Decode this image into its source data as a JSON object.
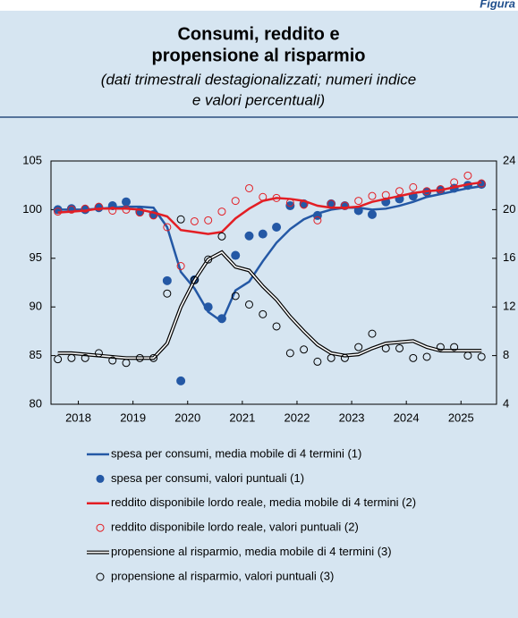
{
  "figure_label": "Figura",
  "chart_data": {
    "type": "line",
    "title": [
      "Consumi, reddito e",
      "propensione al risparmio"
    ],
    "subtitle": [
      "(dati trimestrali destagionalizzati; numeri indice",
      "e valori percentuali)"
    ],
    "x": [
      2018.125,
      2018.375,
      2018.625,
      2018.875,
      2019.125,
      2019.375,
      2019.625,
      2019.875,
      2020.125,
      2020.375,
      2020.625,
      2020.875,
      2021.125,
      2021.375,
      2021.625,
      2021.875,
      2022.125,
      2022.375,
      2022.625,
      2022.875,
      2023.125,
      2023.375,
      2023.625,
      2023.875,
      2024.125,
      2024.375,
      2024.625,
      2024.875,
      2025.125,
      2025.375,
      2025.625,
      2025.875
    ],
    "xlim": [
      2018,
      2026.15
    ],
    "xticks": [
      {
        "value": 2018.5,
        "label": "2018"
      },
      {
        "value": 2019.5,
        "label": "2019"
      },
      {
        "value": 2020.5,
        "label": "2020"
      },
      {
        "value": 2021.5,
        "label": "2021"
      },
      {
        "value": 2022.5,
        "label": "2022"
      },
      {
        "value": 2023.5,
        "label": "2023"
      },
      {
        "value": 2024.5,
        "label": "2024"
      },
      {
        "value": 2025.5,
        "label": "2025"
      }
    ],
    "ylim": [
      80,
      105
    ],
    "yticks": [
      80,
      85,
      90,
      95,
      100,
      105
    ],
    "y2lim": [
      4,
      24
    ],
    "y2ticks": [
      4,
      8,
      12,
      16,
      20,
      24
    ],
    "series": [
      {
        "name": "spesa per consumi, media mobile di 4 termini (1)",
        "color": "#2458a5",
        "style": "line",
        "values": [
          100.0,
          100.0,
          100.0,
          100.1,
          100.2,
          100.3,
          100.3,
          100.2,
          98.2,
          93.6,
          91.9,
          89.5,
          88.5,
          91.7,
          92.6,
          94.7,
          96.6,
          98.0,
          99.0,
          99.6,
          100.0,
          100.2,
          100.2,
          100.0,
          100.1,
          100.4,
          100.8,
          101.3,
          101.6,
          101.9,
          102.2,
          102.4
        ]
      },
      {
        "name": "spesa per consumi, valori puntuali (1)",
        "color": "#2458a5",
        "style": "dots",
        "values": [
          100.0,
          100.1,
          100.0,
          100.2,
          100.4,
          100.8,
          99.8,
          99.5,
          92.7,
          82.4,
          92.8,
          90.0,
          88.8,
          95.3,
          97.3,
          97.5,
          98.2,
          100.4,
          100.6,
          99.4,
          100.6,
          100.4,
          99.9,
          99.5,
          100.8,
          101.1,
          101.4,
          101.8,
          102.0,
          102.2,
          102.5,
          102.6
        ]
      },
      {
        "name": "reddito disponibile lordo reale, media mobile di 4 termini (2)",
        "color": "#e31e24",
        "style": "line",
        "values": [
          99.7,
          99.8,
          99.9,
          100.1,
          100.1,
          100.1,
          100.0,
          99.7,
          99.3,
          97.9,
          97.7,
          97.5,
          97.7,
          99.1,
          100.1,
          100.9,
          101.2,
          101.1,
          100.9,
          100.4,
          100.2,
          100.2,
          100.3,
          100.8,
          101.1,
          101.4,
          101.7,
          101.9,
          102.0,
          102.3,
          102.6,
          102.8
        ]
      },
      {
        "name": "reddito disponibile lordo reale, valori puntuali (2)",
        "color": "#e31e24",
        "style": "circles",
        "values": [
          99.8,
          100.0,
          100.1,
          100.3,
          99.9,
          100.0,
          99.7,
          99.4,
          98.2,
          94.2,
          98.8,
          98.9,
          99.8,
          100.9,
          102.2,
          101.3,
          101.2,
          100.7,
          100.5,
          98.9,
          100.6,
          100.4,
          100.9,
          101.4,
          101.5,
          101.9,
          102.3,
          101.9,
          102.1,
          102.8,
          103.5,
          102.7
        ]
      },
      {
        "name": "propensione al risparmio, media mobile di 4 termini (3)",
        "color": "#000000",
        "style": "double-line",
        "axis": "y2",
        "values": [
          8.2,
          8.2,
          8.1,
          8.0,
          7.9,
          7.8,
          7.8,
          7.8,
          9.0,
          12.0,
          14.2,
          15.9,
          16.5,
          15.3,
          15.0,
          13.7,
          12.6,
          11.2,
          10.0,
          8.9,
          8.2,
          8.0,
          8.1,
          8.6,
          9.0,
          9.1,
          9.2,
          8.7,
          8.4,
          8.4,
          8.4,
          8.4
        ]
      },
      {
        "name": "propensione al risparmio, valori puntuali (3)",
        "color": "#000000",
        "style": "circles",
        "axis": "y2",
        "values": [
          7.7,
          7.8,
          7.8,
          8.2,
          7.6,
          7.4,
          7.8,
          7.8,
          13.1,
          19.2,
          14.2,
          15.9,
          17.8,
          12.9,
          12.2,
          11.4,
          10.4,
          8.2,
          8.5,
          7.5,
          7.8,
          7.8,
          8.7,
          9.8,
          8.6,
          8.6,
          7.8,
          7.9,
          8.7,
          8.7,
          8.0,
          7.9
        ]
      }
    ]
  }
}
